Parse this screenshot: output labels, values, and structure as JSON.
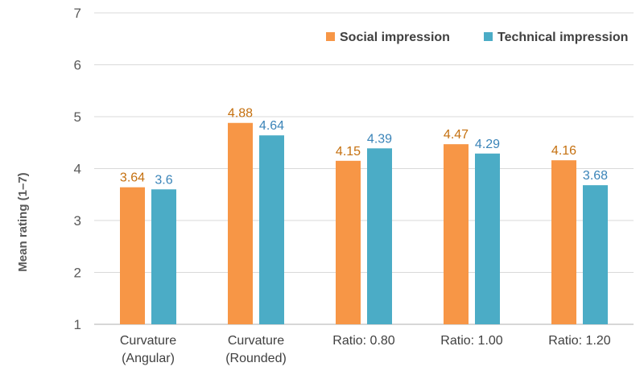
{
  "chart_data": {
    "type": "bar",
    "categories": [
      [
        "Curvature",
        "(Angular)"
      ],
      [
        "Curvature",
        "(Rounded)"
      ],
      [
        "Ratio: 0.80"
      ],
      [
        "Ratio: 1.00"
      ],
      [
        "Ratio: 1.20"
      ]
    ],
    "series": [
      {
        "name": "Social impression",
        "color": "#F79646",
        "label_color": "#C5700F",
        "values": [
          3.64,
          4.88,
          4.15,
          4.47,
          4.16
        ],
        "labels": [
          "3.64",
          "4.88",
          "4.15",
          "4.47",
          "4.16"
        ]
      },
      {
        "name": "Technical impression",
        "color": "#4BACC6",
        "label_color": "#3A84B8",
        "values": [
          3.6,
          4.64,
          4.39,
          4.29,
          3.68
        ],
        "labels": [
          "3.6",
          "4.64",
          "4.39",
          "4.29",
          "3.68"
        ]
      }
    ],
    "ylabel": "Mean rating (1–7)",
    "xlabel": "",
    "ylim": [
      1,
      7
    ],
    "yticks": [
      "1",
      "2",
      "3",
      "4",
      "5",
      "6",
      "7"
    ],
    "grid": true,
    "legend_position": "top-right"
  }
}
